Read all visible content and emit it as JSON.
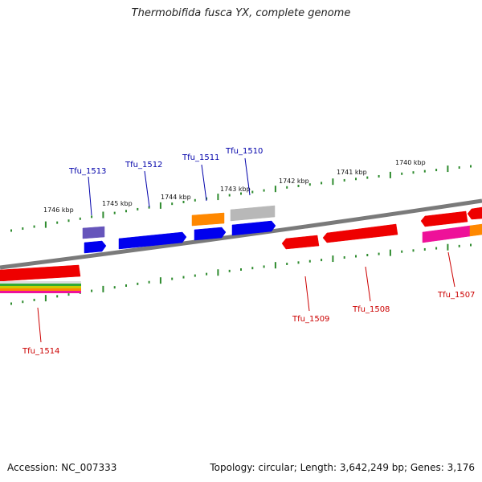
{
  "title": "Thermobifida fusca YX, complete genome",
  "footer": {
    "accession": "Accession: NC_007333",
    "topology": "Topology: circular; Length: 3,642,249 bp; Genes: 3,176"
  },
  "colors": {
    "backbone": "#7a7a7a",
    "tick": "#2e8b2e",
    "forward_label": "#0000aa",
    "reverse_label": "#cc0000",
    "blue": "#0000ee",
    "purple": "#6655bb",
    "orange": "#ff8800",
    "gray": "#b8b8b8",
    "red": "#ee0000",
    "magenta": "#ee1199"
  },
  "scale_labels": [
    "1746 kbp",
    "1745 kbp",
    "1744 kbp",
    "1743 kbp",
    "1742 kbp",
    "1741 kbp",
    "1740 kbp"
  ],
  "forward_labels": [
    "Tfu_1513",
    "Tfu_1512",
    "Tfu_1511",
    "Tfu_1510"
  ],
  "reverse_labels": [
    "Tfu_1514",
    "Tfu_1509",
    "Tfu_1508",
    "Tfu_1507"
  ]
}
